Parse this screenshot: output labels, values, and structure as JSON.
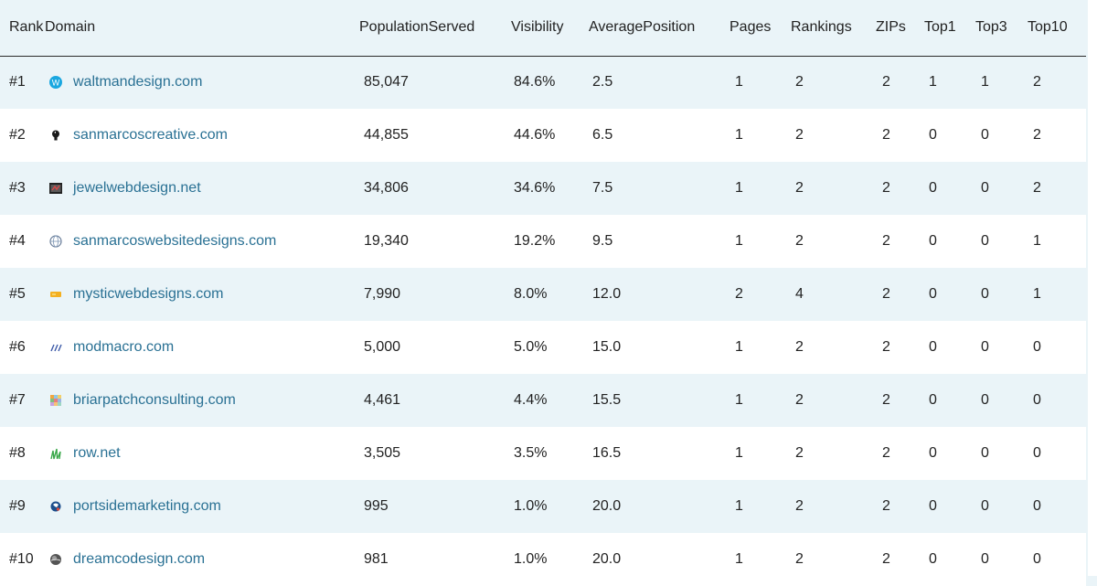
{
  "table": {
    "headers": {
      "rank": "Rank",
      "domain": "Domain",
      "population": "PopulationServed",
      "visibility": "Visibility",
      "avgpos": "AveragePosition",
      "pages": "Pages",
      "rankings": "Rankings",
      "zips": "ZIPs",
      "top1": "Top1",
      "top3": "Top3",
      "top10": "Top10"
    },
    "rows": [
      {
        "rank": "#1",
        "domain": "waltmandesign.com",
        "icon": "w-circle-icon",
        "population": "85,047",
        "visibility": "84.6%",
        "avgpos": "2.5",
        "pages": "1",
        "rankings": "2",
        "zips": "2",
        "top1": "1",
        "top3": "1",
        "top10": "2"
      },
      {
        "rank": "#2",
        "domain": "sanmarcoscreative.com",
        "icon": "lightbulb-icon",
        "population": "44,855",
        "visibility": "44.6%",
        "avgpos": "6.5",
        "pages": "1",
        "rankings": "2",
        "zips": "2",
        "top1": "0",
        "top3": "0",
        "top10": "2"
      },
      {
        "rank": "#3",
        "domain": "jewelwebdesign.net",
        "icon": "jewel-logo-icon",
        "population": "34,806",
        "visibility": "34.6%",
        "avgpos": "7.5",
        "pages": "1",
        "rankings": "2",
        "zips": "2",
        "top1": "0",
        "top3": "0",
        "top10": "2"
      },
      {
        "rank": "#4",
        "domain": "sanmarcoswebsitedesigns.com",
        "icon": "globe-icon",
        "population": "19,340",
        "visibility": "19.2%",
        "avgpos": "9.5",
        "pages": "1",
        "rankings": "2",
        "zips": "2",
        "top1": "0",
        "top3": "0",
        "top10": "1"
      },
      {
        "rank": "#5",
        "domain": "mysticwebdesigns.com",
        "icon": "mystic-logo-icon",
        "population": "7,990",
        "visibility": "8.0%",
        "avgpos": "12.0",
        "pages": "2",
        "rankings": "4",
        "zips": "2",
        "top1": "0",
        "top3": "0",
        "top10": "1"
      },
      {
        "rank": "#6",
        "domain": "modmacro.com",
        "icon": "slashes-icon",
        "population": "5,000",
        "visibility": "5.0%",
        "avgpos": "15.0",
        "pages": "1",
        "rankings": "2",
        "zips": "2",
        "top1": "0",
        "top3": "0",
        "top10": "0"
      },
      {
        "rank": "#7",
        "domain": "briarpatchconsulting.com",
        "icon": "grid-icon",
        "population": "4,461",
        "visibility": "4.4%",
        "avgpos": "15.5",
        "pages": "1",
        "rankings": "2",
        "zips": "2",
        "top1": "0",
        "top3": "0",
        "top10": "0"
      },
      {
        "rank": "#8",
        "domain": "row.net",
        "icon": "grass-icon",
        "population": "3,505",
        "visibility": "3.5%",
        "avgpos": "16.5",
        "pages": "1",
        "rankings": "2",
        "zips": "2",
        "top1": "0",
        "top3": "0",
        "top10": "0"
      },
      {
        "rank": "#9",
        "domain": "portsidemarketing.com",
        "icon": "portside-logo-icon",
        "population": "995",
        "visibility": "1.0%",
        "avgpos": "20.0",
        "pages": "1",
        "rankings": "2",
        "zips": "2",
        "top1": "0",
        "top3": "0",
        "top10": "0"
      },
      {
        "rank": "#10",
        "domain": "dreamcodesign.com",
        "icon": "sphere-icon",
        "population": "981",
        "visibility": "1.0%",
        "avgpos": "20.0",
        "pages": "1",
        "rankings": "2",
        "zips": "2",
        "top1": "0",
        "top3": "0",
        "top10": "0"
      }
    ]
  }
}
